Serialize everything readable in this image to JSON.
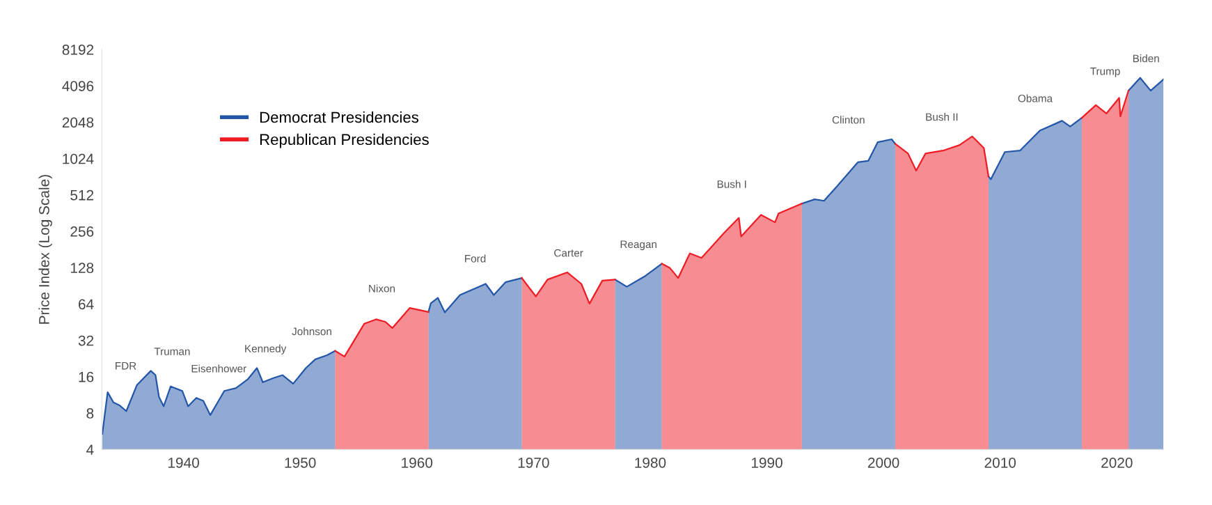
{
  "chart_data": {
    "type": "area",
    "ylabel": "Price Index (Log Scale)",
    "log": true,
    "legend": "top left",
    "x": [
      1933.05,
      1933.2,
      1933.5,
      1934.0,
      1934.5,
      1935.1,
      1936.0,
      1937.2,
      1937.6,
      1937.9,
      1938.3,
      1938.9,
      1939.9,
      1940.4,
      1941.1,
      1941.7,
      1942.3,
      1943.5,
      1944.5,
      1945.5,
      1946.3,
      1946.8,
      1947.7,
      1948.5,
      1949.4,
      1950.5,
      1951.3,
      1952.3,
      1953.0,
      1953.8,
      1955.5,
      1956.5,
      1957.3,
      1957.9,
      1959.4,
      1961.0,
      1961.2,
      1961.8,
      1962.4,
      1963.7,
      1965.9,
      1966.6,
      1967.6,
      1969.0,
      1970.2,
      1971.2,
      1972.9,
      1974.1,
      1974.8,
      1975.9,
      1977.0,
      1978.0,
      1979.5,
      1981.0,
      1981.7,
      1982.4,
      1983.4,
      1984.4,
      1986.3,
      1987.6,
      1987.8,
      1989.5,
      1990.7,
      1991.0,
      1993.0,
      1994.1,
      1994.9,
      1996.0,
      1997.8,
      1998.7,
      1999.5,
      2000.7,
      2001.0,
      2002.1,
      2002.8,
      2003.6,
      2005.1,
      2006.5,
      2007.6,
      2008.6,
      2009.0,
      2009.2,
      2010.4,
      2011.7,
      2013.4,
      2015.3,
      2016.0,
      2017.0,
      2018.2,
      2019.1,
      2020.2,
      2020.3,
      2021.0,
      2022.0,
      2022.9,
      2024.0
    ],
    "series": [
      {
        "name": "Democrat Presidencies",
        "color": "#2356a8",
        "values": [
          5.4,
          7.1,
          11.9,
          9.8,
          9.3,
          8.3,
          13.6,
          17.9,
          16.5,
          10.9,
          9.1,
          13.3,
          12.2,
          9.1,
          10.7,
          10.1,
          7.7,
          12.2,
          12.9,
          15.2,
          18.9,
          14.4,
          15.6,
          16.5,
          14.0,
          18.9,
          22.3,
          24.1,
          26.2,
          null,
          null,
          null,
          null,
          null,
          null,
          55,
          65,
          72,
          54.6,
          76,
          94,
          76,
          97,
          105,
          null,
          null,
          null,
          null,
          null,
          null,
          102,
          89,
          108,
          138,
          null,
          null,
          null,
          null,
          null,
          null,
          null,
          null,
          null,
          null,
          434,
          471,
          458,
          601,
          955,
          982,
          1399,
          1479,
          1360,
          null,
          null,
          null,
          null,
          null,
          null,
          null,
          729,
          690,
          1160,
          1192,
          1746,
          2105,
          1885,
          2226,
          null,
          null,
          null,
          null,
          3740,
          4770,
          3740,
          4640
        ]
      },
      {
        "name": "Republican Presidencies",
        "color": "#ee1c25",
        "values": [
          null,
          null,
          null,
          null,
          null,
          null,
          null,
          null,
          null,
          null,
          null,
          null,
          null,
          null,
          null,
          null,
          null,
          null,
          null,
          null,
          null,
          null,
          null,
          null,
          null,
          null,
          null,
          null,
          26.2,
          23.5,
          44,
          47.8,
          45.6,
          40.5,
          59.4,
          55,
          null,
          null,
          null,
          null,
          null,
          null,
          null,
          105,
          74,
          102,
          117,
          94,
          64.5,
          100,
          102,
          null,
          null,
          138,
          127,
          105,
          168,
          154,
          246,
          331,
          232,
          350,
          304,
          359,
          434,
          null,
          null,
          null,
          null,
          null,
          null,
          null,
          1360,
          1128,
          814,
          1128,
          1192,
          1323,
          1563,
          1252,
          729,
          null,
          null,
          null,
          null,
          null,
          null,
          2226,
          2838,
          2418,
          3258,
          2287,
          3740,
          null,
          null,
          null
        ]
      }
    ],
    "xlim": [
      1933,
      2024
    ],
    "xticks": [
      1940,
      1950,
      1960,
      1970,
      1980,
      1990,
      2000,
      2010,
      2020
    ],
    "ylim": [
      4,
      8192
    ],
    "yticks": [
      4,
      8,
      16,
      32,
      64,
      128,
      256,
      512,
      1024,
      2048,
      4096,
      8192
    ],
    "annotations": [
      "FDR",
      "Truman",
      "Eisenhower",
      "Kennedy",
      "Johnson",
      "Nixon",
      "Ford",
      "Carter",
      "Reagan",
      "Bush I",
      "Clinton",
      "Bush II",
      "Obama",
      "Trump",
      "Biden"
    ]
  }
}
